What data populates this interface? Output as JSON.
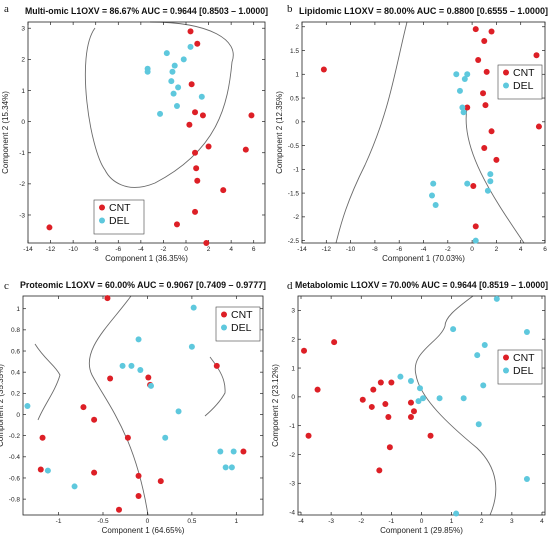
{
  "colors": {
    "cnt": "#dd1f26",
    "del": "#5ec8dd",
    "curve": "#6b6b6b",
    "axis": "#222222"
  },
  "chart_data": [
    {
      "type": "scatter",
      "panel_label": "a",
      "title": "Multi-omic L1OXV = 86.67% AUC = 0.9644 [0.8503 – 1.0000]",
      "xlabel": "Component 1 (36.35%)",
      "ylabel": "Component 2 (15.34%)",
      "xlim": [
        -14,
        7
      ],
      "ylim": [
        -3.9,
        3.2
      ],
      "xticks": [
        -14,
        -12,
        -10,
        -8,
        -6,
        -4,
        -2,
        0,
        2,
        4,
        6
      ],
      "yticks": [
        -3,
        -2,
        -1,
        0,
        1,
        2,
        3
      ],
      "legend_position": "bottom-left",
      "series": [
        {
          "name": "CNT",
          "points": [
            [
              0.4,
              2.9
            ],
            [
              1.0,
              2.5
            ],
            [
              0.5,
              1.2
            ],
            [
              0.8,
              0.3
            ],
            [
              5.8,
              0.2
            ],
            [
              1.5,
              0.2
            ],
            [
              0.3,
              -0.1
            ],
            [
              2.0,
              -0.8
            ],
            [
              5.3,
              -0.9
            ],
            [
              0.8,
              -1.0
            ],
            [
              0.9,
              -1.5
            ],
            [
              1.0,
              -1.9
            ],
            [
              3.3,
              -2.2
            ],
            [
              -12.1,
              -3.4
            ],
            [
              -0.8,
              -3.3
            ],
            [
              0.8,
              -2.9
            ],
            [
              1.8,
              -3.9
            ]
          ]
        },
        {
          "name": "DEL",
          "points": [
            [
              0.4,
              2.4
            ],
            [
              -1.7,
              2.2
            ],
            [
              -0.2,
              2.0
            ],
            [
              -1.0,
              1.8
            ],
            [
              -3.4,
              1.7
            ],
            [
              -3.4,
              1.6
            ],
            [
              -1.2,
              1.6
            ],
            [
              -1.3,
              1.3
            ],
            [
              -0.7,
              1.1
            ],
            [
              -1.1,
              0.9
            ],
            [
              1.4,
              0.8
            ],
            [
              -0.8,
              0.5
            ],
            [
              -2.3,
              0.25
            ]
          ]
        }
      ]
    },
    {
      "type": "scatter",
      "panel_label": "b",
      "title": "Lipidomic L1OXV = 80.00% AUC = 0.8800 [0.6555 – 1.0000]",
      "xlabel": "Component 1 (70.03%)",
      "ylabel": "Component 2 (12.35%)",
      "xlim": [
        -14,
        6
      ],
      "ylim": [
        -2.55,
        2.1
      ],
      "xticks": [
        -14,
        -12,
        -10,
        -8,
        -6,
        -4,
        -2,
        0,
        2,
        4,
        6
      ],
      "yticks": [
        -2.5,
        -2,
        -1.5,
        -1,
        -0.5,
        0,
        0.5,
        1,
        1.5,
        2
      ],
      "legend_position": "top-right",
      "series": [
        {
          "name": "CNT",
          "points": [
            [
              0.3,
              1.95
            ],
            [
              1.6,
              1.9
            ],
            [
              1.0,
              1.7
            ],
            [
              5.3,
              1.4
            ],
            [
              0.5,
              1.3
            ],
            [
              -12.2,
              1.1
            ],
            [
              1.2,
              1.05
            ],
            [
              0.9,
              0.6
            ],
            [
              1.1,
              0.35
            ],
            [
              -0.4,
              0.3
            ],
            [
              5.5,
              -0.1
            ],
            [
              1.6,
              -0.2
            ],
            [
              1.0,
              -0.55
            ],
            [
              2.0,
              -0.8
            ],
            [
              0.1,
              -1.35
            ],
            [
              0.3,
              -2.2
            ]
          ]
        },
        {
          "name": "DEL",
          "points": [
            [
              -1.3,
              1.0
            ],
            [
              -0.4,
              1.0
            ],
            [
              -0.6,
              0.9
            ],
            [
              -1.0,
              0.65
            ],
            [
              -0.8,
              0.3
            ],
            [
              -0.7,
              0.2
            ],
            [
              1.5,
              -1.1
            ],
            [
              1.5,
              -1.25
            ],
            [
              -0.4,
              -1.3
            ],
            [
              -3.2,
              -1.3
            ],
            [
              1.3,
              -1.45
            ],
            [
              -3.3,
              -1.55
            ],
            [
              -3.0,
              -1.75
            ],
            [
              0.3,
              -2.5
            ]
          ]
        }
      ]
    },
    {
      "type": "scatter",
      "panel_label": "c",
      "title": "Proteomic L1OXV = 60.00% AUC = 0.9067 [0.7409 – 0.9777]",
      "xlabel": "Component 1 (64.65%)",
      "ylabel": "Component 2 (35.35%)",
      "xlim": [
        -1.4,
        1.3
      ],
      "ylim": [
        -0.95,
        1.12
      ],
      "xticks": [
        -1,
        -0.5,
        0,
        0.5,
        1
      ],
      "yticks": [
        -0.8,
        -0.6,
        -0.4,
        -0.2,
        0,
        0.2,
        0.4,
        0.6,
        0.8,
        1
      ],
      "legend_position": "top-right",
      "series": [
        {
          "name": "CNT",
          "points": [
            [
              -0.45,
              1.1
            ],
            [
              0.78,
              0.46
            ],
            [
              -0.42,
              0.34
            ],
            [
              0.01,
              0.35
            ],
            [
              0.03,
              0.28
            ],
            [
              -0.72,
              0.07
            ],
            [
              -0.6,
              -0.05
            ],
            [
              -1.18,
              -0.22
            ],
            [
              -0.22,
              -0.22
            ],
            [
              1.08,
              -0.35
            ],
            [
              -1.2,
              -0.52
            ],
            [
              -0.6,
              -0.55
            ],
            [
              -0.1,
              -0.58
            ],
            [
              0.15,
              -0.63
            ],
            [
              -0.1,
              -0.77
            ],
            [
              -0.32,
              -0.9
            ]
          ]
        },
        {
          "name": "DEL",
          "points": [
            [
              0.52,
              1.01
            ],
            [
              -0.1,
              0.71
            ],
            [
              0.5,
              0.64
            ],
            [
              -0.28,
              0.46
            ],
            [
              -0.18,
              0.46
            ],
            [
              -0.08,
              0.42
            ],
            [
              0.04,
              0.27
            ],
            [
              -1.35,
              0.08
            ],
            [
              0.35,
              0.03
            ],
            [
              0.2,
              -0.22
            ],
            [
              0.82,
              -0.35
            ],
            [
              0.97,
              -0.35
            ],
            [
              0.88,
              -0.5
            ],
            [
              0.95,
              -0.5
            ],
            [
              -1.12,
              -0.53
            ],
            [
              -0.82,
              -0.68
            ]
          ]
        }
      ]
    },
    {
      "type": "scatter",
      "panel_label": "d",
      "title": "Metabolomic L1OXV = 70.00% AUC = 0.9644 [0.8519 – 1.0000]",
      "xlabel": "Component 1 (29.85%)",
      "ylabel": "Component 2 (23.12%)",
      "xlim": [
        -4.1,
        4.1
      ],
      "ylim": [
        -4.1,
        3.5
      ],
      "xticks": [
        -4,
        -3,
        -2,
        -1,
        0,
        1,
        2,
        3,
        4
      ],
      "yticks": [
        -4,
        -3,
        -2,
        -1,
        0,
        1,
        2,
        3
      ],
      "legend_position": "top-right",
      "series": [
        {
          "name": "CNT",
          "points": [
            [
              -2.9,
              1.9
            ],
            [
              -3.9,
              1.6
            ],
            [
              -1.35,
              0.5
            ],
            [
              -1.0,
              0.5
            ],
            [
              -3.45,
              0.25
            ],
            [
              -1.6,
              0.25
            ],
            [
              -1.95,
              -0.1
            ],
            [
              -0.35,
              -0.2
            ],
            [
              -1.2,
              -0.25
            ],
            [
              -1.65,
              -0.35
            ],
            [
              -0.25,
              -0.5
            ],
            [
              -1.1,
              -0.7
            ],
            [
              -0.35,
              -0.7
            ],
            [
              -3.75,
              -1.35
            ],
            [
              0.3,
              -1.35
            ],
            [
              -1.05,
              -1.75
            ],
            [
              -1.4,
              -2.55
            ]
          ]
        },
        {
          "name": "DEL",
          "points": [
            [
              2.5,
              3.4
            ],
            [
              1.05,
              2.35
            ],
            [
              3.5,
              2.25
            ],
            [
              2.1,
              1.8
            ],
            [
              1.85,
              1.45
            ],
            [
              -0.7,
              0.7
            ],
            [
              -0.35,
              0.55
            ],
            [
              2.05,
              0.4
            ],
            [
              -0.05,
              0.3
            ],
            [
              1.4,
              -0.05
            ],
            [
              0.05,
              -0.05
            ],
            [
              0.6,
              -0.05
            ],
            [
              -0.1,
              -0.15
            ],
            [
              1.9,
              -0.95
            ],
            [
              3.5,
              -2.85
            ],
            [
              1.15,
              -4.05
            ]
          ]
        }
      ]
    }
  ]
}
